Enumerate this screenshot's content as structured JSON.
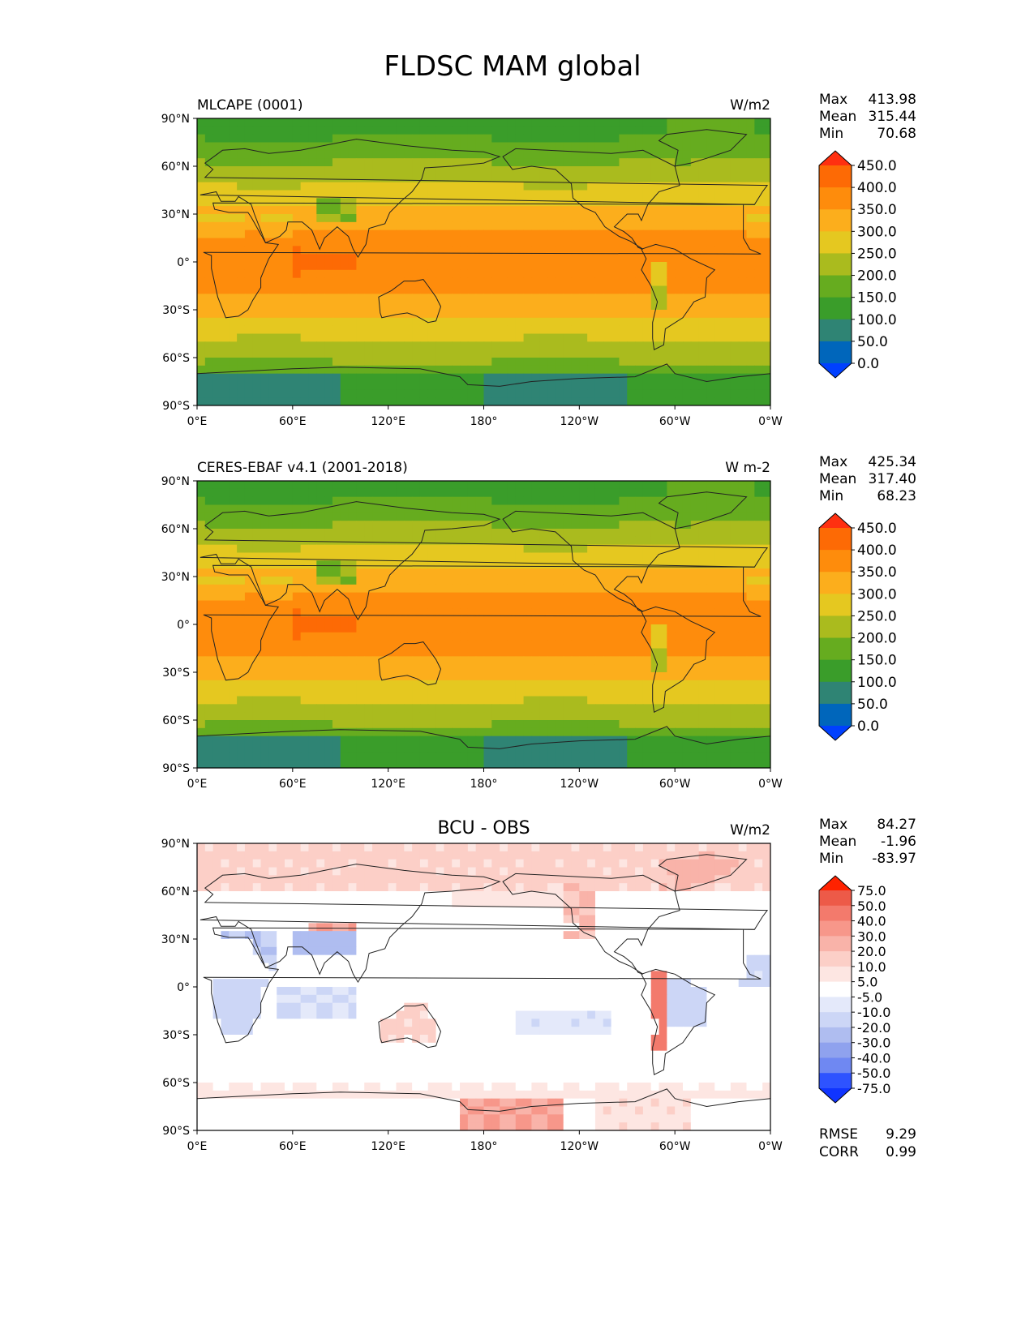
{
  "figure": {
    "title": "FLDSC MAM global"
  },
  "axes": {
    "lat_ticks": [
      "90°N",
      "60°N",
      "30°N",
      "0°",
      "30°S",
      "60°S",
      "90°S"
    ],
    "lon_ticks": [
      "0°E",
      "60°E",
      "120°E",
      "180°",
      "120°W",
      "60°W",
      "0°W"
    ]
  },
  "colors": {
    "abs_levels": [
      "#0040ff",
      "#0066bb",
      "#2f8474",
      "#3a9d2a",
      "#66ac1f",
      "#aabb1e",
      "#e5c820",
      "#fcae1c",
      "#fe8c0c",
      "#fd6a05",
      "#ff3010"
    ],
    "diff_levels": [
      "#1034ff",
      "#2e53ff",
      "#4f6ffb",
      "#6f88f2",
      "#8fa2ee",
      "#afbdf0",
      "#ccd6f6",
      "#e4e9fa",
      "#ffffff",
      "#fde6e2",
      "#fccfc7",
      "#f9b3a9",
      "#f7978a",
      "#f37a6c",
      "#ed5a48",
      "#e13a25",
      "#ff2200"
    ]
  },
  "panels": [
    {
      "left_title": "MLCAPE (0001)",
      "center_title": "",
      "units": "W/m2",
      "stats": [
        {
          "label": "Max",
          "value": "413.98"
        },
        {
          "label": "Mean",
          "value": "315.44"
        },
        {
          "label": "Min",
          "value": "70.68"
        }
      ],
      "colorbar_labels": [
        "450.0",
        "400.0",
        "350.0",
        "300.0",
        "250.0",
        "200.0",
        "150.0",
        "100.0",
        "50.0",
        "0.0"
      ],
      "footer": []
    },
    {
      "left_title": "CERES-EBAF v4.1 (2001-2018)",
      "center_title": "",
      "units": "W m-2",
      "stats": [
        {
          "label": "Max",
          "value": "425.34"
        },
        {
          "label": "Mean",
          "value": "317.40"
        },
        {
          "label": "Min",
          "value": "68.23"
        }
      ],
      "colorbar_labels": [
        "450.0",
        "400.0",
        "350.0",
        "300.0",
        "250.0",
        "200.0",
        "150.0",
        "100.0",
        "50.0",
        "0.0"
      ],
      "footer": []
    },
    {
      "left_title": "",
      "center_title": "BCU - OBS",
      "units": "W/m2",
      "stats": [
        {
          "label": "Max",
          "value": "84.27"
        },
        {
          "label": "Mean",
          "value": "-1.96"
        },
        {
          "label": "Min",
          "value": "-83.97"
        }
      ],
      "colorbar_labels": [
        "75.0",
        "50.0",
        "40.0",
        "30.0",
        "20.0",
        "10.0",
        "5.0",
        "-5.0",
        "-10.0",
        "-20.0",
        "-30.0",
        "-40.0",
        "-50.0",
        "-75.0"
      ],
      "footer": [
        {
          "label": "RMSE",
          "value": "9.29"
        },
        {
          "label": "CORR",
          "value": "0.99"
        }
      ]
    }
  ],
  "chart_data": [
    {
      "type": "heatmap",
      "title": "MLCAPE (0001)",
      "units": "W/m2",
      "xlabel": "",
      "ylabel": "",
      "xlim": [
        0,
        360
      ],
      "ylim": [
        -90,
        90
      ],
      "colorbar_levels": [
        0,
        50,
        100,
        150,
        200,
        250,
        300,
        350,
        400,
        450
      ],
      "zonal_mean": [
        {
          "lat": 85,
          "value": 150
        },
        {
          "lat": 70,
          "value": 210
        },
        {
          "lat": 55,
          "value": 235
        },
        {
          "lat": 45,
          "value": 260
        },
        {
          "lat": 35,
          "value": 295
        },
        {
          "lat": 25,
          "value": 330
        },
        {
          "lat": 15,
          "value": 365
        },
        {
          "lat": 5,
          "value": 385
        },
        {
          "lat": -5,
          "value": 380
        },
        {
          "lat": -15,
          "value": 360
        },
        {
          "lat": -25,
          "value": 330
        },
        {
          "lat": -35,
          "value": 290
        },
        {
          "lat": -45,
          "value": 250
        },
        {
          "lat": -55,
          "value": 220
        },
        {
          "lat": -65,
          "value": 190
        },
        {
          "lat": -75,
          "value": 110
        },
        {
          "lat": -85,
          "value": 90
        }
      ],
      "stats": {
        "max": 413.98,
        "mean": 315.44,
        "min": 70.68
      }
    },
    {
      "type": "heatmap",
      "title": "CERES-EBAF v4.1 (2001-2018)",
      "units": "W m-2",
      "xlabel": "",
      "ylabel": "",
      "xlim": [
        0,
        360
      ],
      "ylim": [
        -90,
        90
      ],
      "colorbar_levels": [
        0,
        50,
        100,
        150,
        200,
        250,
        300,
        350,
        400,
        450
      ],
      "zonal_mean": [
        {
          "lat": 85,
          "value": 150
        },
        {
          "lat": 70,
          "value": 205
        },
        {
          "lat": 55,
          "value": 235
        },
        {
          "lat": 45,
          "value": 262
        },
        {
          "lat": 35,
          "value": 300
        },
        {
          "lat": 25,
          "value": 335
        },
        {
          "lat": 15,
          "value": 368
        },
        {
          "lat": 5,
          "value": 388
        },
        {
          "lat": -5,
          "value": 385
        },
        {
          "lat": -15,
          "value": 362
        },
        {
          "lat": -25,
          "value": 332
        },
        {
          "lat": -35,
          "value": 292
        },
        {
          "lat": -45,
          "value": 252
        },
        {
          "lat": -55,
          "value": 220
        },
        {
          "lat": -65,
          "value": 190
        },
        {
          "lat": -75,
          "value": 110
        },
        {
          "lat": -85,
          "value": 90
        }
      ],
      "stats": {
        "max": 425.34,
        "mean": 317.4,
        "min": 68.23
      }
    },
    {
      "type": "heatmap",
      "title": "BCU - OBS",
      "units": "W/m2",
      "xlabel": "",
      "ylabel": "",
      "xlim": [
        0,
        360
      ],
      "ylim": [
        -90,
        90
      ],
      "colorbar_levels": [
        -75,
        -50,
        -40,
        -30,
        -20,
        -10,
        -5,
        5,
        10,
        20,
        30,
        40,
        50,
        75
      ],
      "stats": {
        "max": 84.27,
        "mean": -1.96,
        "min": -83.97,
        "rmse": 9.29,
        "corr": 0.99
      }
    }
  ]
}
